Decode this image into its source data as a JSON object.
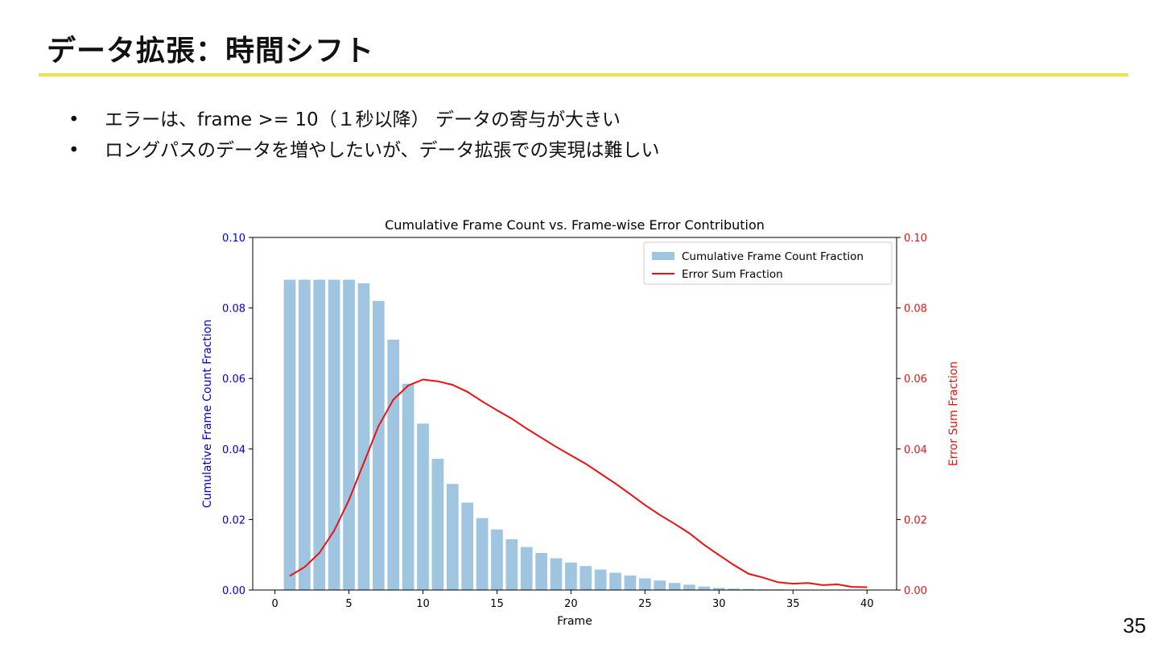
{
  "slide": {
    "title": "データ拡張：時間シフト",
    "bullets": [
      "エラーは、frame >= 10（１秒以降） データの寄与が大きい",
      "ロングパスのデータを増やしたいが、データ拡張での実現は難しい"
    ],
    "page_number": "35"
  },
  "colors": {
    "accent_rule": "#f2e14a",
    "bar": "#9fc5e1",
    "line": "#ee1111",
    "left_axis": "#0000cc",
    "right_axis": "#ee1111"
  },
  "chart_data": {
    "type": "bar",
    "title": "Cumulative Frame Count vs. Frame-wise Error Contribution",
    "xlabel": "Frame",
    "ylabel": "Cumulative Frame Count Fraction",
    "y2label": "Error Sum Fraction",
    "xlim": [
      -1.5,
      42
    ],
    "ylim": [
      0,
      0.1
    ],
    "y2lim": [
      0,
      0.1
    ],
    "xticks": [
      0,
      5,
      10,
      15,
      20,
      25,
      30,
      35,
      40
    ],
    "xtick_labels": [
      "0",
      "5",
      "10",
      "15",
      "20",
      "25",
      "30",
      "35",
      "40"
    ],
    "yticks": [
      0,
      0.02,
      0.04,
      0.06,
      0.08,
      0.1
    ],
    "ytick_labels": [
      "0.00",
      "0.02",
      "0.04",
      "0.06",
      "0.08",
      "0.10"
    ],
    "y2tick_labels": [
      "0.00",
      "0.02",
      "0.04",
      "0.06",
      "0.08",
      "0.10"
    ],
    "legend_position": "top-right",
    "series": [
      {
        "name": "Cumulative Frame Count Fraction",
        "type": "bar",
        "x": [
          1,
          2,
          3,
          4,
          5,
          6,
          7,
          8,
          9,
          10,
          11,
          12,
          13,
          14,
          15,
          16,
          17,
          18,
          19,
          20,
          21,
          22,
          23,
          24,
          25,
          26,
          27,
          28,
          29,
          30,
          31,
          32,
          33,
          34,
          35,
          36,
          37,
          38,
          39,
          40
        ],
        "values": [
          0.088,
          0.088,
          0.088,
          0.088,
          0.088,
          0.087,
          0.082,
          0.071,
          0.0585,
          0.0472,
          0.0372,
          0.0301,
          0.0248,
          0.0204,
          0.0172,
          0.0144,
          0.0122,
          0.0105,
          0.009,
          0.0078,
          0.0068,
          0.0058,
          0.0049,
          0.0041,
          0.0033,
          0.0027,
          0.002,
          0.0015,
          0.001,
          0.0006,
          0.0004,
          0.0003,
          0.0002,
          0.0002,
          0.0001,
          0.0001,
          0.0001,
          0.0001,
          0.0001,
          0.0001
        ]
      },
      {
        "name": "Error Sum Fraction",
        "type": "line",
        "axis": "right",
        "x": [
          1,
          2,
          3,
          4,
          5,
          6,
          7,
          8,
          9,
          10,
          11,
          12,
          13,
          14,
          15,
          16,
          17,
          18,
          19,
          20,
          21,
          22,
          23,
          24,
          25,
          26,
          27,
          28,
          29,
          30,
          31,
          32,
          33,
          34,
          35,
          36,
          37,
          38,
          39,
          40
        ],
        "values": [
          0.004,
          0.0065,
          0.0105,
          0.0168,
          0.0255,
          0.036,
          0.0465,
          0.054,
          0.058,
          0.0597,
          0.0592,
          0.0582,
          0.0562,
          0.0535,
          0.051,
          0.0486,
          0.0458,
          0.0432,
          0.0406,
          0.0382,
          0.0358,
          0.033,
          0.0302,
          0.0272,
          0.0241,
          0.0213,
          0.0188,
          0.0161,
          0.0128,
          0.0099,
          0.0071,
          0.0046,
          0.0035,
          0.0022,
          0.0018,
          0.002,
          0.0014,
          0.0016,
          0.0009,
          0.0008
        ]
      }
    ]
  }
}
